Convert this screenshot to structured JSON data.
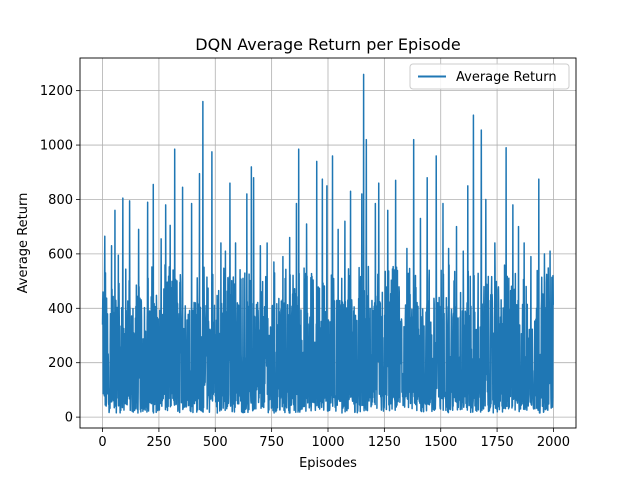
{
  "chart_data": {
    "type": "line",
    "title": "DQN Average Return per Episode",
    "xlabel": "Episodes",
    "ylabel": "Average Return",
    "xlim": [
      -100,
      2100
    ],
    "ylim": [
      -40,
      1320
    ],
    "xticks": [
      0,
      250,
      500,
      750,
      1000,
      1250,
      1500,
      1750,
      2000
    ],
    "yticks": [
      0,
      200,
      400,
      600,
      800,
      1000,
      1200
    ],
    "xtick_labels": [
      "0",
      "250",
      "500",
      "750",
      "1000",
      "1250",
      "1500",
      "1750",
      "2000"
    ],
    "ytick_labels": [
      "0",
      "200",
      "400",
      "600",
      "800",
      "1000",
      "1200"
    ],
    "grid": true,
    "legend_position": "top-right",
    "series": [
      {
        "name": "Average Return",
        "color": "#1f77b4",
        "episodes": 2000,
        "min": 15,
        "typical_range": [
          20,
          560
        ],
        "peaks": [
          [
            0,
            340
          ],
          [
            2,
            460
          ],
          [
            10,
            665
          ],
          [
            40,
            630
          ],
          [
            55,
            760
          ],
          [
            70,
            595
          ],
          [
            90,
            805
          ],
          [
            120,
            795
          ],
          [
            160,
            690
          ],
          [
            200,
            790
          ],
          [
            225,
            855
          ],
          [
            260,
            655
          ],
          [
            280,
            780
          ],
          [
            300,
            705
          ],
          [
            320,
            985
          ],
          [
            355,
            845
          ],
          [
            395,
            785
          ],
          [
            430,
            895
          ],
          [
            445,
            1160
          ],
          [
            485,
            975
          ],
          [
            525,
            640
          ],
          [
            545,
            610
          ],
          [
            565,
            860
          ],
          [
            590,
            640
          ],
          [
            640,
            820
          ],
          [
            660,
            920
          ],
          [
            670,
            880
          ],
          [
            700,
            630
          ],
          [
            730,
            640
          ],
          [
            760,
            570
          ],
          [
            800,
            590
          ],
          [
            830,
            660
          ],
          [
            860,
            785
          ],
          [
            870,
            985
          ],
          [
            905,
            710
          ],
          [
            950,
            940
          ],
          [
            975,
            875
          ],
          [
            995,
            850
          ],
          [
            1020,
            960
          ],
          [
            1045,
            690
          ],
          [
            1075,
            720
          ],
          [
            1100,
            830
          ],
          [
            1150,
            820
          ],
          [
            1158,
            1260
          ],
          [
            1170,
            1020
          ],
          [
            1210,
            785
          ],
          [
            1225,
            860
          ],
          [
            1265,
            760
          ],
          [
            1300,
            870
          ],
          [
            1350,
            620
          ],
          [
            1380,
            1020
          ],
          [
            1410,
            730
          ],
          [
            1440,
            880
          ],
          [
            1480,
            960
          ],
          [
            1510,
            785
          ],
          [
            1535,
            620
          ],
          [
            1570,
            700
          ],
          [
            1600,
            610
          ],
          [
            1620,
            850
          ],
          [
            1645,
            1110
          ],
          [
            1680,
            1055
          ],
          [
            1700,
            800
          ],
          [
            1740,
            640
          ],
          [
            1790,
            990
          ],
          [
            1820,
            780
          ],
          [
            1845,
            700
          ],
          [
            1870,
            640
          ],
          [
            1900,
            590
          ],
          [
            1935,
            875
          ],
          [
            1960,
            600
          ],
          [
            1985,
            610
          ],
          [
            1998,
            520
          ]
        ]
      }
    ]
  }
}
